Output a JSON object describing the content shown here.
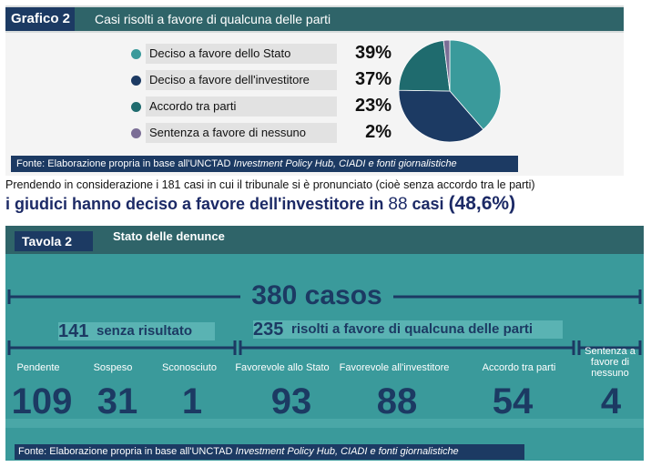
{
  "grafico": {
    "badge": "Grafico 2",
    "title": "Casi risolti a favore di qualcuna delle parti",
    "legend": [
      {
        "label": "Deciso a favore dello Stato",
        "pct": "39%",
        "color": "#3a9a9b"
      },
      {
        "label": "Deciso a favore dell'investitore",
        "pct": "37%",
        "color": "#1c3a63"
      },
      {
        "label": "Accordo tra parti",
        "pct": "23%",
        "color": "#1f6b6e"
      },
      {
        "label": "Sentenza a favore di nessuno",
        "pct": "2%",
        "color": "#7b6e96"
      }
    ],
    "source_prefix": "Fonte: Elaborazione propria in base all'UNCTAD ",
    "source_italic": "Investment Policy Hub, CIADI e fonti giornalistiche"
  },
  "middle": {
    "line1": "Prendendo in considerazione i 181 casi in cui il tribunale si è pronunciato (cioè senza accordo tra le parti)",
    "line2_a": "i giudici hanno deciso a favore dell'investitore in ",
    "line2_num": "88",
    "line2_b": " casi ",
    "line2_pct": "(48,6%)"
  },
  "tavola": {
    "badge": "Tavola 2",
    "title": "Stato delle denunce",
    "total": "380 casos",
    "group1_num": "141",
    "group1_label": "senza risultato",
    "group2_num": "235",
    "group2_label": "risolti a favore di qualcuna delle parti",
    "source_prefix": "Fonte: Elaborazione propria in base all'UNCTAD ",
    "source_italic": "Investment Policy Hub, CIADI e fonti giornalistiche"
  },
  "chart_data": [
    {
      "type": "pie",
      "title": "Casi risolti a favore di qualcuna delle parti",
      "categories": [
        "Deciso a favore dello Stato",
        "Deciso a favore dell'investitore",
        "Accordo tra parti",
        "Sentenza a favore di nessuno"
      ],
      "values": [
        39,
        37,
        23,
        2
      ],
      "colors": [
        "#3a9a9b",
        "#1c3a63",
        "#1f6b6e",
        "#7b6e96"
      ]
    },
    {
      "type": "table",
      "title": "Stato delle denunce",
      "total": 380,
      "groups": [
        {
          "total": 141,
          "label": "senza risultato",
          "categories": [
            "Pendente",
            "Sospeso",
            "Sconosciuto"
          ],
          "values": [
            109,
            31,
            1
          ]
        },
        {
          "total": 235,
          "label": "risolti a favore di qualcuna delle parti",
          "categories": [
            "Favorevole allo Stato",
            "Favorevole all'investitore",
            "Accordo tra parti"
          ],
          "values": [
            93,
            88,
            54
          ]
        },
        {
          "total": null,
          "label": "",
          "categories": [
            "Sentenza a favore di nessuno"
          ],
          "values": [
            4
          ]
        }
      ]
    }
  ],
  "table_cats": [
    {
      "label": "Pendente",
      "value": "109"
    },
    {
      "label": "Sospeso",
      "value": "31"
    },
    {
      "label": "Sconosciuto",
      "value": "1"
    },
    {
      "label": "Favorevole allo Stato",
      "value": "93"
    },
    {
      "label": "Favorevole all'investitore",
      "value": "88"
    },
    {
      "label": "Accordo tra parti",
      "value": "54"
    },
    {
      "label": "Sentenza a favore di nessuno",
      "value": "4"
    }
  ]
}
